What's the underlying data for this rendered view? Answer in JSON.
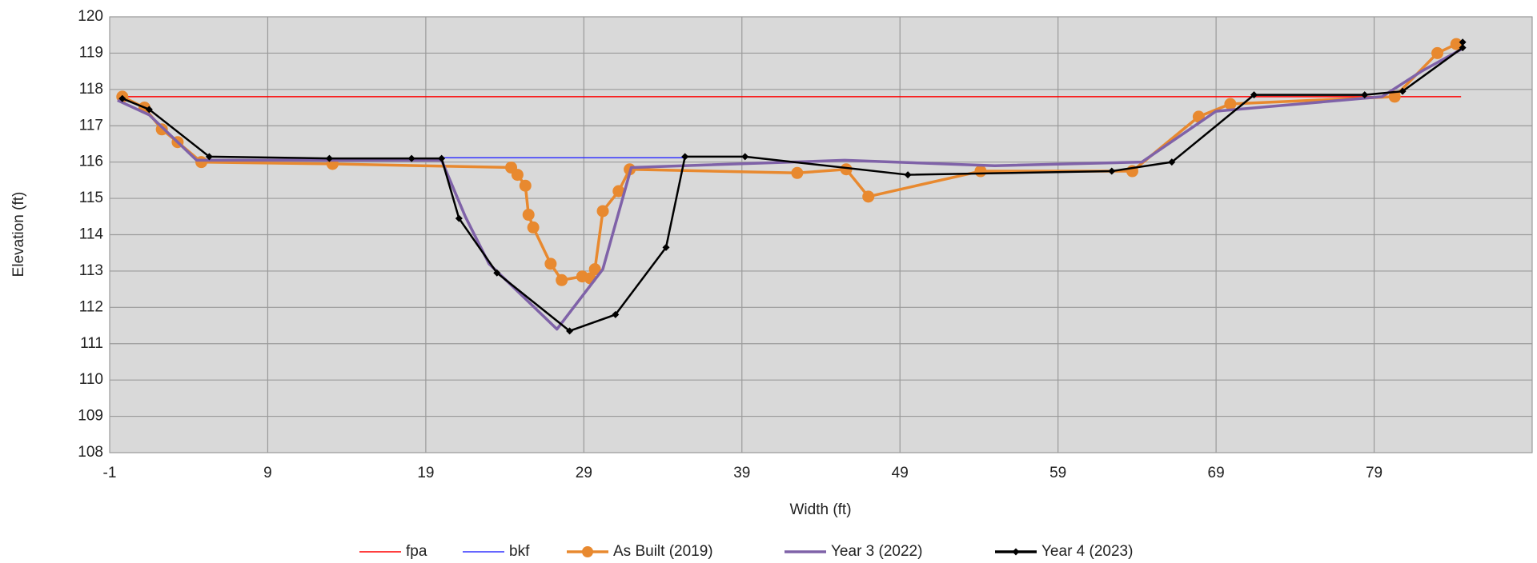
{
  "chart_data": {
    "type": "line",
    "xlabel": "Width (ft)",
    "ylabel": "Elevation (ft)",
    "xlim": [
      -1,
      89
    ],
    "ylim": [
      108,
      120
    ],
    "xticks": [
      -1,
      9,
      19,
      29,
      39,
      49,
      59,
      69,
      79
    ],
    "yticks": [
      108,
      109,
      110,
      111,
      112,
      113,
      114,
      115,
      116,
      117,
      118,
      119,
      120
    ],
    "grid": true,
    "legend": "bottom",
    "series": [
      {
        "name": "fpa",
        "color": "#ff0000",
        "marker": "none",
        "x": [
          -0.5,
          84.5
        ],
        "values": [
          117.8,
          117.8
        ]
      },
      {
        "name": "bkf",
        "color": "#3333ff",
        "marker": "none",
        "x": [
          20,
          35.4
        ],
        "values": [
          116.12,
          116.12
        ]
      },
      {
        "name": "As Built (2019)",
        "color": "#e8892f",
        "marker": "circle",
        "x": [
          -0.2,
          1.2,
          2.3,
          3.3,
          4.8,
          13.1,
          24.4,
          24.8,
          25.3,
          25.5,
          25.8,
          26.9,
          27.6,
          28.9,
          29.4,
          29.7,
          30.2,
          31.2,
          31.9,
          42.5,
          45.6,
          47,
          54.1,
          63.7,
          67.9,
          69.9,
          80.3,
          83,
          84.2
        ],
        "values": [
          117.8,
          117.5,
          116.9,
          116.55,
          116.0,
          115.95,
          115.85,
          115.65,
          115.35,
          114.55,
          114.2,
          113.2,
          112.75,
          112.85,
          112.8,
          113.05,
          114.65,
          115.2,
          115.8,
          115.7,
          115.8,
          115.05,
          115.75,
          115.75,
          117.25,
          117.6,
          117.8,
          119.0,
          119.25
        ]
      },
      {
        "name": "Year 3 (2022)",
        "color": "#7f62a8",
        "marker": "none",
        "x": [
          -0.5,
          1.5,
          4.5,
          20,
          21.5,
          23,
          27.3,
          30.2,
          32,
          45.5,
          55,
          64.3,
          69,
          79.5,
          82,
          84.5
        ],
        "values": [
          117.7,
          117.3,
          116.05,
          116.05,
          114.5,
          113.2,
          111.4,
          113.05,
          115.85,
          116.05,
          115.9,
          116.0,
          117.4,
          117.8,
          118.5,
          119.1
        ]
      },
      {
        "name": "Year 4 (2023)",
        "color": "#000000",
        "marker": "diamond",
        "x": [
          -0.2,
          1.5,
          5.3,
          12.9,
          18.1,
          20,
          21.1,
          23.5,
          28.1,
          31,
          34.2,
          35.4,
          39.2,
          49.5,
          62.4,
          66.2,
          71.4,
          78.4,
          80.8,
          84.6,
          84.6
        ],
        "values": [
          117.75,
          117.45,
          116.15,
          116.1,
          116.1,
          116.1,
          114.45,
          112.95,
          111.35,
          111.8,
          113.65,
          116.15,
          116.15,
          115.65,
          115.75,
          116.0,
          117.85,
          117.85,
          117.95,
          119.15,
          119.3
        ]
      }
    ]
  }
}
